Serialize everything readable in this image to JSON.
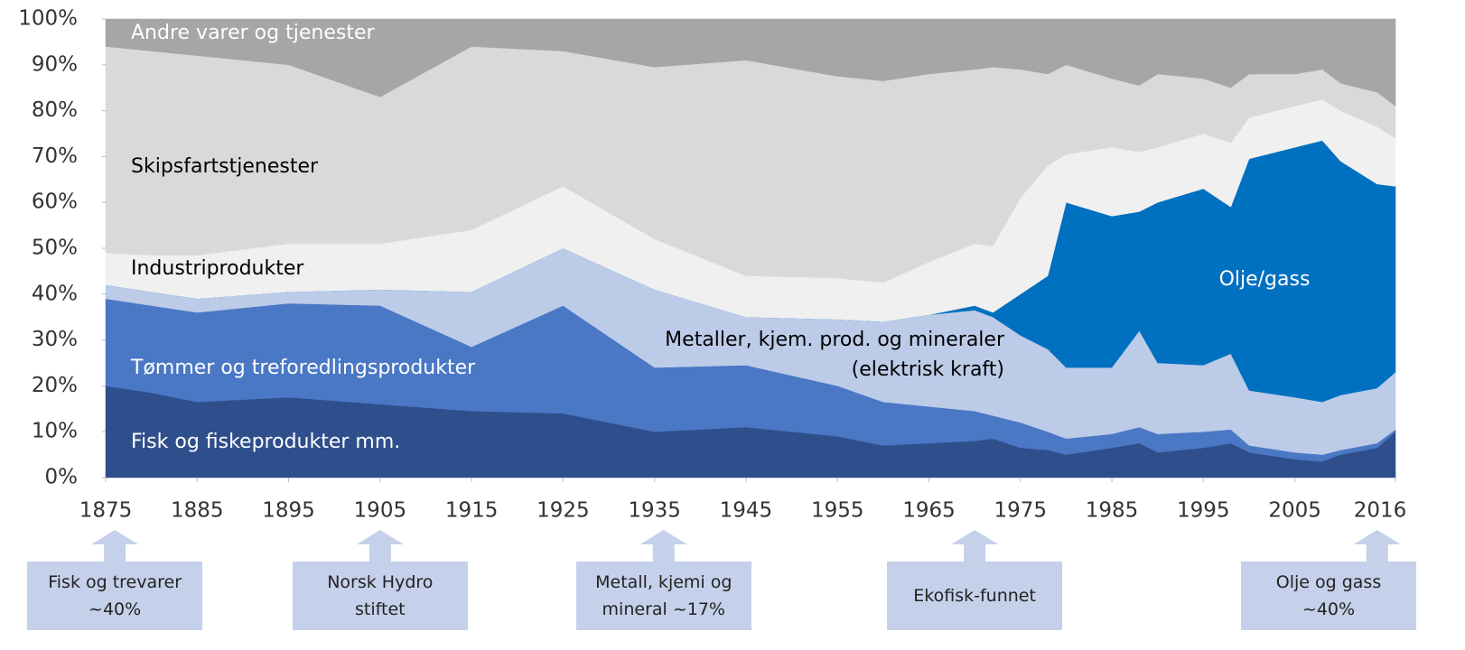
{
  "chart_data": {
    "type": "stacked_area",
    "x": [
      1875,
      1880,
      1885,
      1895,
      1905,
      1915,
      1925,
      1935,
      1945,
      1955,
      1960,
      1965,
      1970,
      1972,
      1975,
      1978,
      1980,
      1985,
      1988,
      1990,
      1995,
      1998,
      2000,
      2005,
      2008,
      2010,
      2014,
      2016
    ],
    "xlim": [
      1875,
      2016
    ],
    "xticks": [
      1875,
      1885,
      1895,
      1905,
      1915,
      1925,
      1935,
      1945,
      1955,
      1965,
      1975,
      1985,
      1995,
      2005,
      2016
    ],
    "ylim": [
      0,
      100
    ],
    "yticks": [
      {
        "value": 0,
        "label": "0%"
      },
      {
        "value": 10,
        "label": "10%"
      },
      {
        "value": 20,
        "label": "20%"
      },
      {
        "value": 30,
        "label": "30%"
      },
      {
        "value": 40,
        "label": "40%"
      },
      {
        "value": 50,
        "label": "50%"
      },
      {
        "value": 60,
        "label": "60%"
      },
      {
        "value": 70,
        "label": "70%"
      },
      {
        "value": 80,
        "label": "80%"
      },
      {
        "value": 90,
        "label": "90%"
      },
      {
        "value": 100,
        "label": "100%"
      }
    ],
    "series": [
      {
        "name": "Fisk og fiskeprodukter mm.",
        "color": "#2f4f8c",
        "values": [
          20,
          18.5,
          16.5,
          17.5,
          16,
          14.5,
          14,
          10,
          11,
          9,
          7,
          7.5,
          8,
          8.5,
          6.5,
          6,
          5,
          6.5,
          7.5,
          5.5,
          6.5,
          7.5,
          5.5,
          4,
          3.5,
          5,
          6.5,
          10
        ]
      },
      {
        "name": "Tømmer og treforedlingsprodukter",
        "color": "#4a78c5",
        "values": [
          19,
          19,
          19.5,
          20.5,
          21.5,
          14,
          23.5,
          14,
          13.5,
          11,
          9.5,
          8,
          6.5,
          5,
          5.5,
          4,
          3.5,
          3,
          3.5,
          4,
          3.5,
          3,
          1.5,
          1.5,
          1.5,
          1,
          1,
          0.5
        ]
      },
      {
        "name": "Metaller, kjem. prod. og mineraler (elektrisk kraft)",
        "color": "#bccbe8",
        "values": [
          3,
          3,
          3,
          2.5,
          3.5,
          12,
          12.5,
          17,
          10.5,
          14.5,
          17.5,
          20,
          22,
          21.5,
          19,
          18,
          15.5,
          14.5,
          21,
          15.5,
          14.5,
          16.5,
          12,
          12,
          11.5,
          12,
          12,
          12.5
        ]
      },
      {
        "name": "Olje/gass",
        "color": "#0070c0",
        "values": [
          0,
          0,
          0,
          0,
          0,
          0,
          0,
          0,
          0,
          0,
          0,
          0,
          1,
          1,
          9,
          16,
          36,
          33,
          26,
          35,
          38.5,
          32,
          50.5,
          54.5,
          57,
          51,
          44.5,
          40.5
        ]
      },
      {
        "name": "Industriprodukter",
        "color": "#f0f0f0",
        "values": [
          7,
          8,
          9.5,
          10.5,
          10,
          13.5,
          13.5,
          11,
          9,
          9,
          8.5,
          11.5,
          13.5,
          14.5,
          21,
          24,
          10.5,
          15,
          13,
          12,
          12,
          14,
          9,
          9,
          9,
          11,
          12.5,
          10.5
        ]
      },
      {
        "name": "Skipsfartstjenester",
        "color": "#d9d9d9",
        "values": [
          45,
          44.5,
          43.5,
          39,
          32,
          40,
          29.5,
          37.5,
          47,
          44,
          44,
          41,
          38,
          39,
          28,
          20,
          19.5,
          15,
          14.5,
          16,
          12,
          12,
          9.5,
          7,
          6.5,
          6,
          7.5,
          7
        ]
      },
      {
        "name": "Andre varer og tjenester",
        "color": "#a6a6a6",
        "values": [
          6,
          7,
          8,
          10,
          17,
          6,
          7,
          10.5,
          9,
          12.5,
          13.5,
          12,
          11,
          10.5,
          11,
          12,
          10,
          13,
          14.5,
          12,
          13,
          15,
          12,
          12,
          11,
          14,
          16,
          19
        ]
      }
    ],
    "annotations": [
      {
        "x": 1876,
        "lines": [
          "Fisk og trevarer",
          "~40%"
        ]
      },
      {
        "x": 1905,
        "lines": [
          "Norsk Hydro",
          "stiftet"
        ]
      },
      {
        "x": 1936,
        "lines": [
          "Metall, kjemi og",
          "mineral ~17%"
        ]
      },
      {
        "x": 1970,
        "lines": [
          "Ekofisk-funnet"
        ]
      },
      {
        "x": 2014,
        "lines": [
          "Olje og gass",
          "~40%"
        ]
      }
    ]
  }
}
